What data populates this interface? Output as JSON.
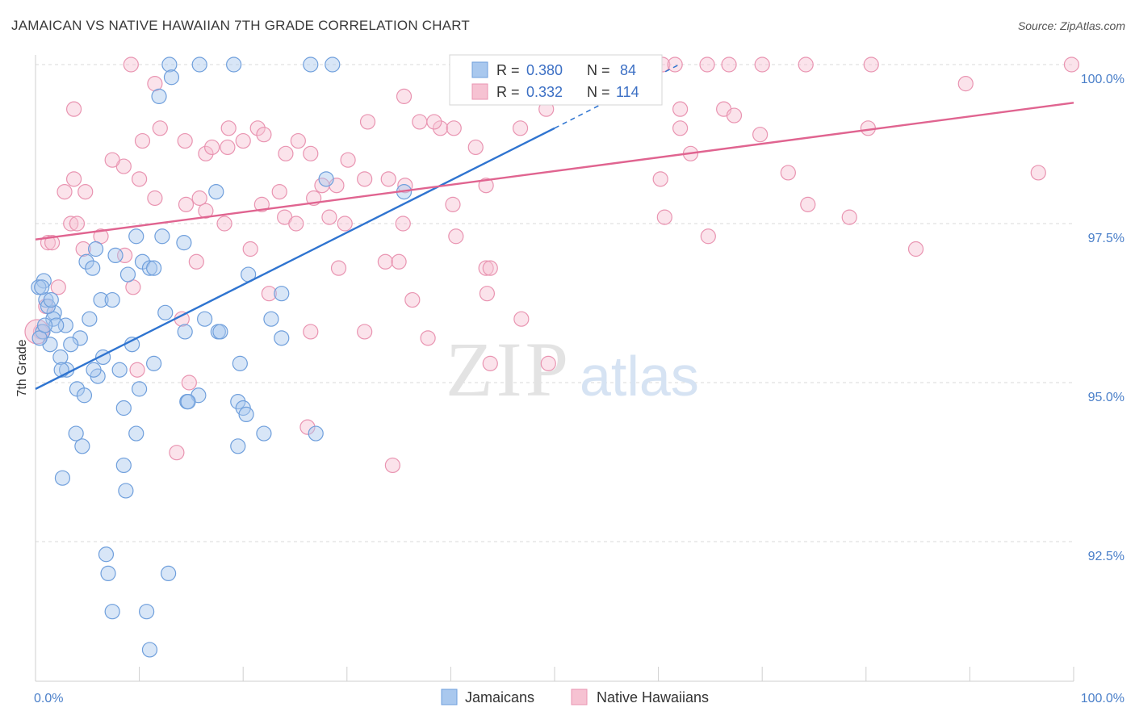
{
  "title": "JAMAICAN VS NATIVE HAWAIIAN 7TH GRADE CORRELATION CHART",
  "source": "Source: ZipAtlas.com",
  "colors": {
    "jamaicans_fill": "#a9c8ee",
    "jamaicans_stroke": "#6f9fdc",
    "jamaicans_line": "#2f74d0",
    "hawaiians_fill": "#f6c2d2",
    "hawaiians_stroke": "#e994b1",
    "hawaiians_line": "#e06490",
    "tick_label": "#4a7fc9",
    "grid": "#d9d9d9"
  },
  "legend": {
    "rows": [
      {
        "r_label": "R =",
        "r_value": "0.380",
        "n_label": "N =",
        "n_value": "84"
      },
      {
        "r_label": "R =",
        "r_value": "0.332",
        "n_label": "N =",
        "n_value": "114"
      }
    ]
  },
  "bottom_legend": [
    "Jamaicans",
    "Native Hawaiians"
  ],
  "watermark": {
    "zip": "ZIP",
    "atlas": "atlas"
  },
  "chart_data": {
    "type": "scatter",
    "xlabel": "",
    "ylabel": "7th Grade",
    "xlim": [
      0,
      100
    ],
    "ylim": [
      90.2,
      100.45
    ],
    "x_tick_labels": [
      {
        "value": 0,
        "label": "0.0%"
      },
      {
        "value": 100,
        "label": "100.0%"
      }
    ],
    "y_tick_labels": [
      {
        "value": 100.0,
        "label": "100.0%"
      },
      {
        "value": 97.5,
        "label": "97.5%"
      },
      {
        "value": 95.0,
        "label": "95.0%"
      },
      {
        "value": 92.5,
        "label": "92.5%"
      }
    ],
    "grid": true,
    "legend_position": "top-center",
    "series": [
      {
        "name": "Jamaicans",
        "r": 0.38,
        "n": 84,
        "trend": {
          "x0": 0,
          "y0": 94.9,
          "x1": 50,
          "y1": 99.0,
          "dashed_to_x": 62,
          "dashed_to_y": 100.0
        },
        "points": [
          [
            12.9,
            100
          ],
          [
            15.8,
            100
          ],
          [
            19.1,
            100
          ],
          [
            26.5,
            100
          ],
          [
            28.6,
            100
          ],
          [
            13.1,
            99.8
          ],
          [
            11.9,
            99.5
          ],
          [
            28.0,
            98.2
          ],
          [
            17.4,
            98.0
          ],
          [
            35.5,
            98.0
          ],
          [
            9.7,
            97.3
          ],
          [
            12.2,
            97.3
          ],
          [
            14.3,
            97.2
          ],
          [
            5.8,
            97.1
          ],
          [
            7.7,
            97.0
          ],
          [
            10.3,
            96.9
          ],
          [
            4.9,
            96.9
          ],
          [
            11.0,
            96.8
          ],
          [
            11.4,
            96.8
          ],
          [
            5.5,
            96.8
          ],
          [
            8.9,
            96.7
          ],
          [
            20.5,
            96.7
          ],
          [
            0.8,
            96.6
          ],
          [
            0.3,
            96.5
          ],
          [
            23.7,
            96.4
          ],
          [
            6.3,
            96.3
          ],
          [
            7.4,
            96.3
          ],
          [
            1.0,
            96.3
          ],
          [
            12.5,
            96.1
          ],
          [
            1.8,
            96.1
          ],
          [
            1.7,
            96.0
          ],
          [
            16.3,
            96.0
          ],
          [
            22.7,
            96.0
          ],
          [
            5.2,
            96.0
          ],
          [
            2.9,
            95.9
          ],
          [
            2.0,
            95.9
          ],
          [
            17.6,
            95.8
          ],
          [
            17.8,
            95.8
          ],
          [
            14.4,
            95.8
          ],
          [
            4.3,
            95.7
          ],
          [
            23.7,
            95.7
          ],
          [
            1.4,
            95.6
          ],
          [
            3.4,
            95.6
          ],
          [
            9.3,
            95.6
          ],
          [
            6.5,
            95.4
          ],
          [
            2.4,
            95.4
          ],
          [
            11.4,
            95.3
          ],
          [
            19.7,
            95.3
          ],
          [
            3.0,
            95.2
          ],
          [
            8.1,
            95.2
          ],
          [
            2.5,
            95.2
          ],
          [
            6.0,
            95.1
          ],
          [
            5.6,
            95.2
          ],
          [
            10.0,
            94.9
          ],
          [
            4.0,
            94.9
          ],
          [
            4.7,
            94.8
          ],
          [
            15.7,
            94.8
          ],
          [
            14.6,
            94.7
          ],
          [
            19.5,
            94.7
          ],
          [
            14.7,
            94.7
          ],
          [
            8.5,
            94.6
          ],
          [
            20.0,
            94.6
          ],
          [
            20.3,
            94.5
          ],
          [
            27.0,
            94.2
          ],
          [
            22.0,
            94.2
          ],
          [
            3.9,
            94.2
          ],
          [
            9.7,
            94.2
          ],
          [
            4.5,
            94.0
          ],
          [
            19.5,
            94.0
          ],
          [
            8.5,
            93.7
          ],
          [
            2.6,
            93.5
          ],
          [
            8.7,
            93.3
          ],
          [
            6.8,
            92.3
          ],
          [
            7.0,
            92.0
          ],
          [
            12.8,
            92.0
          ],
          [
            7.4,
            91.4
          ],
          [
            10.7,
            91.4
          ],
          [
            11.0,
            90.8
          ],
          [
            0.7,
            95.8
          ],
          [
            1.2,
            96.2
          ],
          [
            0.6,
            96.5
          ],
          [
            0.4,
            95.7
          ],
          [
            0.9,
            95.9
          ],
          [
            1.5,
            96.3
          ]
        ]
      },
      {
        "name": "Native Hawaiians",
        "r": 0.332,
        "n": 114,
        "trend": {
          "x0": 0,
          "y0": 97.25,
          "x1": 100,
          "y1": 99.4
        },
        "points": [
          [
            9.2,
            100
          ],
          [
            44.3,
            100
          ],
          [
            46.2,
            100
          ],
          [
            55.4,
            100
          ],
          [
            56.0,
            100
          ],
          [
            60.4,
            100
          ],
          [
            61.6,
            100
          ],
          [
            64.7,
            100
          ],
          [
            66.8,
            100
          ],
          [
            70.0,
            100
          ],
          [
            74.2,
            100
          ],
          [
            80.5,
            100
          ],
          [
            99.8,
            100
          ],
          [
            11.5,
            99.7
          ],
          [
            89.6,
            99.7
          ],
          [
            35.5,
            99.5
          ],
          [
            3.7,
            99.3
          ],
          [
            49.2,
            99.3
          ],
          [
            62.1,
            99.3
          ],
          [
            66.3,
            99.3
          ],
          [
            67.3,
            99.2
          ],
          [
            39.0,
            99.0
          ],
          [
            40.3,
            99.0
          ],
          [
            37.0,
            99.1
          ],
          [
            38.4,
            99.1
          ],
          [
            32.0,
            99.1
          ],
          [
            80.2,
            99.0
          ],
          [
            12.0,
            99.0
          ],
          [
            18.6,
            99.0
          ],
          [
            21.4,
            99.0
          ],
          [
            46.7,
            99.0
          ],
          [
            62.1,
            99.0
          ],
          [
            69.8,
            98.9
          ],
          [
            20.0,
            98.8
          ],
          [
            22.0,
            98.9
          ],
          [
            10.3,
            98.8
          ],
          [
            14.4,
            98.8
          ],
          [
            25.3,
            98.8
          ],
          [
            18.5,
            98.7
          ],
          [
            16.4,
            98.6
          ],
          [
            17.0,
            98.7
          ],
          [
            42.4,
            98.7
          ],
          [
            63.1,
            98.6
          ],
          [
            24.1,
            98.6
          ],
          [
            30.1,
            98.5
          ],
          [
            8.5,
            98.4
          ],
          [
            26.5,
            98.6
          ],
          [
            7.4,
            98.5
          ],
          [
            96.6,
            98.3
          ],
          [
            72.5,
            98.3
          ],
          [
            3.7,
            98.2
          ],
          [
            10.0,
            98.2
          ],
          [
            31.7,
            98.2
          ],
          [
            34.0,
            98.2
          ],
          [
            60.2,
            98.2
          ],
          [
            35.6,
            98.1
          ],
          [
            43.4,
            98.1
          ],
          [
            29.0,
            98.1
          ],
          [
            27.6,
            98.1
          ],
          [
            2.8,
            98.0
          ],
          [
            4.8,
            98.0
          ],
          [
            23.5,
            98.0
          ],
          [
            11.5,
            97.9
          ],
          [
            15.8,
            97.9
          ],
          [
            26.8,
            97.9
          ],
          [
            21.8,
            97.8
          ],
          [
            74.4,
            97.8
          ],
          [
            16.4,
            97.7
          ],
          [
            18.2,
            97.5
          ],
          [
            28.3,
            97.6
          ],
          [
            24.0,
            97.6
          ],
          [
            25.1,
            97.5
          ],
          [
            29.8,
            97.5
          ],
          [
            35.4,
            97.5
          ],
          [
            60.6,
            97.6
          ],
          [
            78.4,
            97.6
          ],
          [
            3.4,
            97.5
          ],
          [
            40.5,
            97.3
          ],
          [
            64.8,
            97.3
          ],
          [
            6.3,
            97.3
          ],
          [
            1.2,
            97.2
          ],
          [
            4.6,
            97.1
          ],
          [
            20.7,
            97.1
          ],
          [
            84.8,
            97.1
          ],
          [
            8.6,
            97.0
          ],
          [
            15.5,
            96.9
          ],
          [
            29.2,
            96.8
          ],
          [
            33.7,
            96.9
          ],
          [
            35.0,
            96.9
          ],
          [
            43.4,
            96.8
          ],
          [
            43.8,
            96.8
          ],
          [
            2.2,
            96.5
          ],
          [
            9.4,
            96.5
          ],
          [
            22.5,
            96.4
          ],
          [
            43.5,
            96.4
          ],
          [
            36.3,
            96.3
          ],
          [
            46.8,
            96.0
          ],
          [
            14.1,
            96.0
          ],
          [
            26.5,
            95.8
          ],
          [
            31.7,
            95.8
          ],
          [
            37.8,
            95.7
          ],
          [
            43.8,
            95.3
          ],
          [
            49.4,
            95.3
          ],
          [
            14.8,
            95.0
          ],
          [
            9.8,
            95.2
          ],
          [
            26.2,
            94.3
          ],
          [
            13.6,
            93.9
          ],
          [
            34.4,
            93.7
          ],
          [
            0.5,
            95.8
          ],
          [
            1.0,
            96.2
          ],
          [
            1.6,
            97.2
          ],
          [
            40.2,
            97.8
          ],
          [
            14.5,
            97.8
          ],
          [
            4.0,
            97.5
          ]
        ]
      }
    ]
  }
}
